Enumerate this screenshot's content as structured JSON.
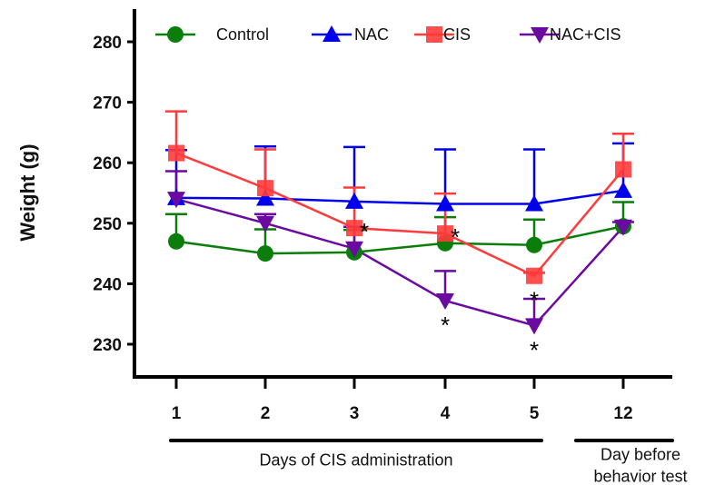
{
  "chart_data": {
    "type": "line",
    "title": "",
    "ylabel": "Weight (g)",
    "xlabel_groups": [
      "Days of CIS administration",
      "Day before",
      "behavior test"
    ],
    "categories": [
      "1",
      "2",
      "3",
      "4",
      "5",
      "12"
    ],
    "ylim": [
      230,
      280
    ],
    "yticks": [
      "230",
      "240",
      "250",
      "260",
      "270",
      "280"
    ],
    "legend_position": "top",
    "series": [
      {
        "name": "Control",
        "color": "#0a7d0a",
        "marker": "circle",
        "values": [
          247.0,
          245.0,
          245.2,
          246.7,
          246.4,
          249.5
        ],
        "err_upper": [
          4.5,
          4.0,
          3.7,
          4.3,
          4.2,
          4.0
        ]
      },
      {
        "name": "NAC",
        "color": "#0000ee",
        "marker": "triangle-up",
        "values": [
          254.2,
          254.1,
          253.6,
          253.2,
          253.2,
          255.4
        ],
        "err_upper": [
          7.9,
          8.6,
          9.0,
          9.0,
          9.0,
          7.8
        ]
      },
      {
        "name": "CIS",
        "color": "#ff3b3b",
        "marker": "square",
        "values": [
          261.6,
          255.8,
          249.2,
          248.3,
          241.3,
          258.9
        ],
        "err_upper": [
          6.9,
          6.4,
          6.7,
          6.6,
          0.5,
          5.9
        ]
      },
      {
        "name": "NAC+CIS",
        "color": "#6a0aa0",
        "marker": "triangle-down",
        "values": [
          254.0,
          250.0,
          245.8,
          237.2,
          233.1,
          249.4
        ],
        "err_upper": [
          4.6,
          1.5,
          3.6,
          4.9,
          4.4,
          0.8
        ]
      }
    ],
    "annotations": [
      {
        "text": "*",
        "series": "CIS",
        "category": "3",
        "position": "right"
      },
      {
        "text": "*",
        "series": "CIS",
        "category": "4",
        "position": "right"
      },
      {
        "text": "*",
        "series": "CIS",
        "category": "5",
        "position": "below"
      },
      {
        "text": "*",
        "series": "NAC+CIS",
        "category": "4",
        "position": "below"
      },
      {
        "text": "*",
        "series": "NAC+CIS",
        "category": "5",
        "position": "below"
      }
    ]
  }
}
